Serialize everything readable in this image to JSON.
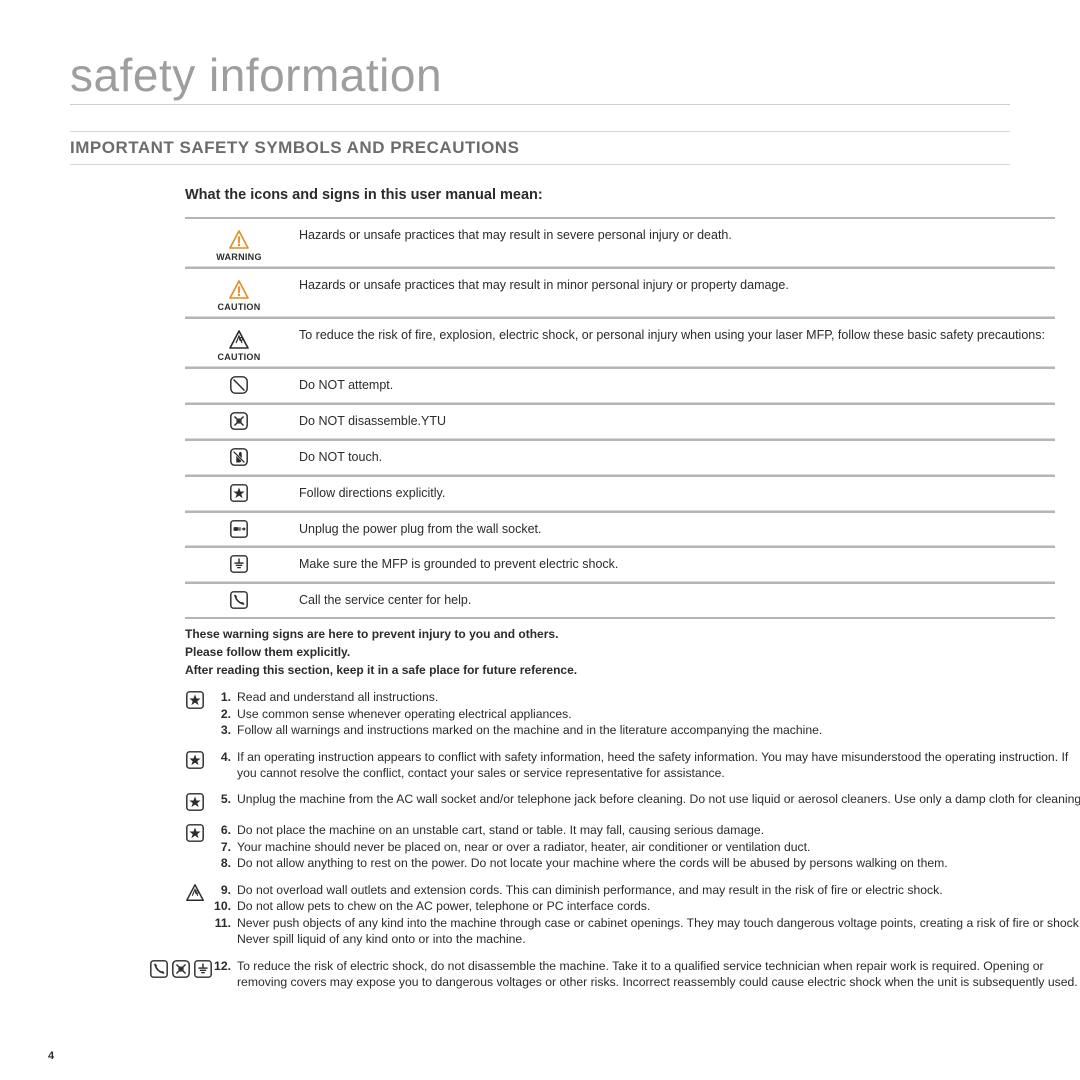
{
  "colors": {
    "title_gray": "#9e9e9e",
    "heading_gray": "#6c6c6c",
    "rule": "#b5b5b5",
    "text": "#2b2b2b",
    "warn_orange": "#e58a1f",
    "icon_stroke": "#2b2b2b"
  },
  "page_number": "4",
  "title": "safety information",
  "section_heading": "IMPORTANT SAFETY SYMBOLS AND PRECAUTIONS",
  "sub_heading": "What the icons and signs in this user manual mean:",
  "symbols": [
    {
      "label": "WARNING",
      "icon": "warn-tri",
      "desc": "Hazards or unsafe practices that may result in severe personal injury or death."
    },
    {
      "label": "CAUTION",
      "icon": "warn-tri",
      "desc": "Hazards or unsafe practices that may result in minor personal injury or property damage."
    },
    {
      "label": "CAUTION",
      "icon": "caution-tri",
      "desc": "To reduce the risk of fire, explosion, electric shock, or personal injury when using your laser MFP, follow these basic safety precautions:"
    },
    {
      "label": "",
      "icon": "no-attempt",
      "desc": "Do NOT attempt."
    },
    {
      "label": "",
      "icon": "no-disassemble",
      "desc": "Do NOT disassemble.YTU"
    },
    {
      "label": "",
      "icon": "no-touch",
      "desc": "Do NOT touch."
    },
    {
      "label": "",
      "icon": "star-box",
      "desc": "Follow directions explicitly."
    },
    {
      "label": "",
      "icon": "unplug",
      "desc": "Unplug the power plug from the wall socket."
    },
    {
      "label": "",
      "icon": "ground",
      "desc": "Make sure the MFP is grounded to prevent electric shock."
    },
    {
      "label": "",
      "icon": "phone",
      "desc": "Call the service center for help."
    }
  ],
  "notes": [
    "These warning signs are here to prevent injury to you and others.",
    "Please follow them explicitly.",
    "After reading this section, keep it in a safe place for future reference."
  ],
  "instruction_groups": [
    {
      "icon": [
        "star-box"
      ],
      "items": [
        {
          "n": "1.",
          "t": "Read and understand all instructions."
        },
        {
          "n": "2.",
          "t": "Use common sense whenever operating electrical appliances."
        },
        {
          "n": "3.",
          "t": "Follow all warnings and instructions marked on the machine and in the literature accompanying the machine."
        }
      ]
    },
    {
      "icon": [
        "star-box"
      ],
      "items": [
        {
          "n": "4.",
          "t": "If an operating instruction appears to conflict with safety information, heed the safety information. You may have misunderstood the operating instruction. If you cannot resolve the conflict, contact your sales or service representative for assistance."
        }
      ]
    },
    {
      "icon": [
        "star-box"
      ],
      "items": [
        {
          "n": "5.",
          "t": "Unplug the machine from the AC wall socket and/or telephone jack before cleaning. Do not use liquid or aerosol cleaners. Use only a damp cloth for cleaning."
        }
      ]
    },
    {
      "icon": [
        "star-box"
      ],
      "items": [
        {
          "n": "6.",
          "t": "Do not place the machine on an unstable cart, stand or table. It may fall, causing serious damage."
        },
        {
          "n": "7.",
          "t": "Your machine should never be placed on, near or over a radiator, heater, air conditioner or ventilation duct."
        },
        {
          "n": "8.",
          "t": "Do not allow anything to rest on the power. Do not locate your machine where the cords will be abused by persons walking on them."
        }
      ]
    },
    {
      "icon": [
        "caution-tri-sm"
      ],
      "items": [
        {
          "n": "9.",
          "t": "Do not overload wall outlets and extension cords. This can diminish performance, and may result in the risk of fire or electric shock."
        },
        {
          "n": "10.",
          "t": "Do not allow pets to chew on the AC power, telephone or PC interface cords."
        },
        {
          "n": "11.",
          "t": "Never push objects of any kind into the machine through case or cabinet openings. They may touch dangerous voltage points, creating a risk of fire or shock. Never spill liquid of any kind onto or into the machine."
        }
      ]
    },
    {
      "icon": [
        "phone",
        "no-disassemble",
        "ground"
      ],
      "items": [
        {
          "n": "12.",
          "t": "To reduce the risk of electric shock, do not disassemble the machine. Take it to a qualified service technician when repair work is required. Opening or removing covers may expose you to dangerous voltages or other risks. Incorrect reassembly could cause electric shock when the unit is subsequently used."
        }
      ]
    }
  ]
}
